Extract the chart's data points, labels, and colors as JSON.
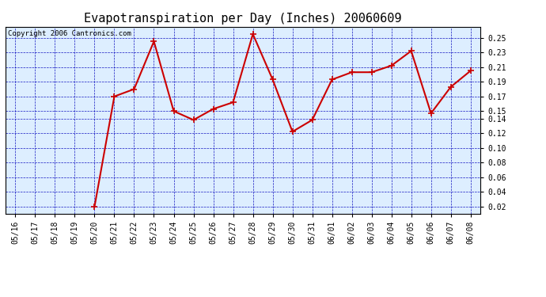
{
  "title": "Evapotranspiration per Day (Inches) 20060609",
  "copyright": "Copyright 2006 Cantronics.com",
  "dates": [
    "05/16",
    "05/17",
    "05/18",
    "05/19",
    "05/20",
    "05/21",
    "05/22",
    "05/23",
    "05/24",
    "05/25",
    "05/26",
    "05/27",
    "05/28",
    "05/29",
    "05/30",
    "05/31",
    "06/01",
    "06/02",
    "06/03",
    "06/04",
    "06/05",
    "06/06",
    "06/07",
    "06/08"
  ],
  "values": [
    null,
    null,
    null,
    null,
    0.02,
    0.17,
    0.18,
    0.245,
    0.15,
    0.138,
    0.153,
    0.162,
    0.255,
    0.193,
    0.122,
    0.138,
    0.193,
    0.203,
    0.203,
    0.212,
    0.232,
    0.147,
    0.183,
    0.205
  ],
  "line_color": "#cc0000",
  "marker_color": "#cc0000",
  "bg_color": "#ffffff",
  "plot_bg_color": "#ddeeff",
  "grid_color": "#0000bb",
  "border_color": "#000000",
  "title_color": "#000000",
  "yticks": [
    0.02,
    0.04,
    0.06,
    0.08,
    0.1,
    0.12,
    0.14,
    0.15,
    0.17,
    0.19,
    0.21,
    0.23,
    0.25
  ],
  "ylim": [
    0.01,
    0.265
  ],
  "title_fontsize": 11,
  "tick_fontsize": 7,
  "copyright_fontsize": 6.5
}
